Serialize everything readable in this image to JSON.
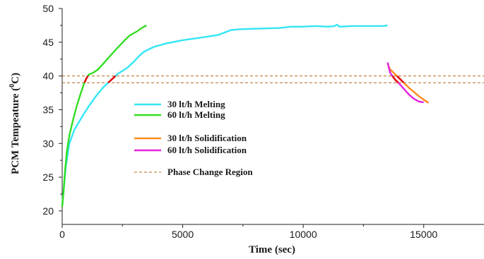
{
  "chart_data": {
    "type": "line",
    "title": "",
    "xlabel": "Time (sec)",
    "ylabel": "PCM Tempeature (",
    "ylabel_sup": "0",
    "ylabel_suffix": "C)",
    "xlim": [
      0,
      17500
    ],
    "ylim": [
      18,
      50
    ],
    "x_ticks": [
      0,
      5000,
      10000,
      15000
    ],
    "x_tick_labels": [
      "0",
      "5000",
      "10000",
      "15000"
    ],
    "y_ticks": [
      20,
      25,
      30,
      35,
      40,
      45,
      50
    ],
    "y_tick_labels": [
      "20",
      "25",
      "30",
      "35",
      "40",
      "45",
      "50"
    ],
    "grid": false,
    "legend_position": "center-left",
    "series": [
      {
        "name": "30 lt/h Melting",
        "color": "#33e6f5",
        "x": [
          0,
          60,
          150,
          300,
          500,
          800,
          1100,
          1400,
          1700,
          2000,
          2300,
          2700,
          3000,
          3200,
          3400,
          3800,
          4300,
          5000,
          5800,
          6500,
          7000,
          7300,
          8000,
          9000,
          9500,
          10000,
          10500,
          11000,
          11300,
          11400,
          11500,
          12000,
          12500,
          13000,
          13300,
          13500
        ],
        "y": [
          20.8,
          23,
          26.5,
          30,
          32,
          33.8,
          35.5,
          37,
          38.3,
          39.3,
          40.3,
          41.2,
          42.2,
          43,
          43.6,
          44.3,
          44.8,
          45.3,
          45.7,
          46.1,
          46.8,
          46.9,
          47,
          47.1,
          47.3,
          47.3,
          47.4,
          47.3,
          47.4,
          47.6,
          47.3,
          47.4,
          47.4,
          47.4,
          47.4,
          47.5
        ]
      },
      {
        "name": "60 lt/h Melting",
        "color": "#33dd22",
        "x": [
          0,
          50,
          120,
          200,
          300,
          450,
          600,
          750,
          900,
          1000,
          1100,
          1300,
          1500,
          1700,
          2000,
          2300,
          2600,
          2800,
          3100,
          3300,
          3500
        ],
        "y": [
          20.6,
          22.5,
          26,
          29,
          31.2,
          33.5,
          35.5,
          37.2,
          38.8,
          39.6,
          40.2,
          40.5,
          41,
          41.8,
          43,
          44.2,
          45.3,
          46,
          46.6,
          47.1,
          47.5
        ]
      },
      {
        "name": "30 lt/h Solidification",
        "color": "#ff8a1c",
        "x": [
          13500,
          13600,
          13800,
          14000,
          14200,
          14400,
          14600,
          14800,
          15000,
          15200
        ],
        "y": [
          41.8,
          41,
          40.3,
          39.6,
          38.9,
          38.2,
          37.6,
          37,
          36.5,
          36
        ]
      },
      {
        "name": "60 lt/h Solidification",
        "color": "#e623e0",
        "x": [
          13500,
          13600,
          13800,
          14000,
          14200,
          14400,
          14600,
          14800,
          15000
        ],
        "y": [
          42,
          40.5,
          39.5,
          38.8,
          38,
          37.2,
          36.6,
          36.2,
          36.1
        ]
      }
    ],
    "phase_change": {
      "name": "Phase Change Region",
      "color": "#b5651d",
      "y_values": [
        40,
        39
      ]
    },
    "highlight_color": "#e01010",
    "highlight_range": [
      39,
      40
    ]
  }
}
